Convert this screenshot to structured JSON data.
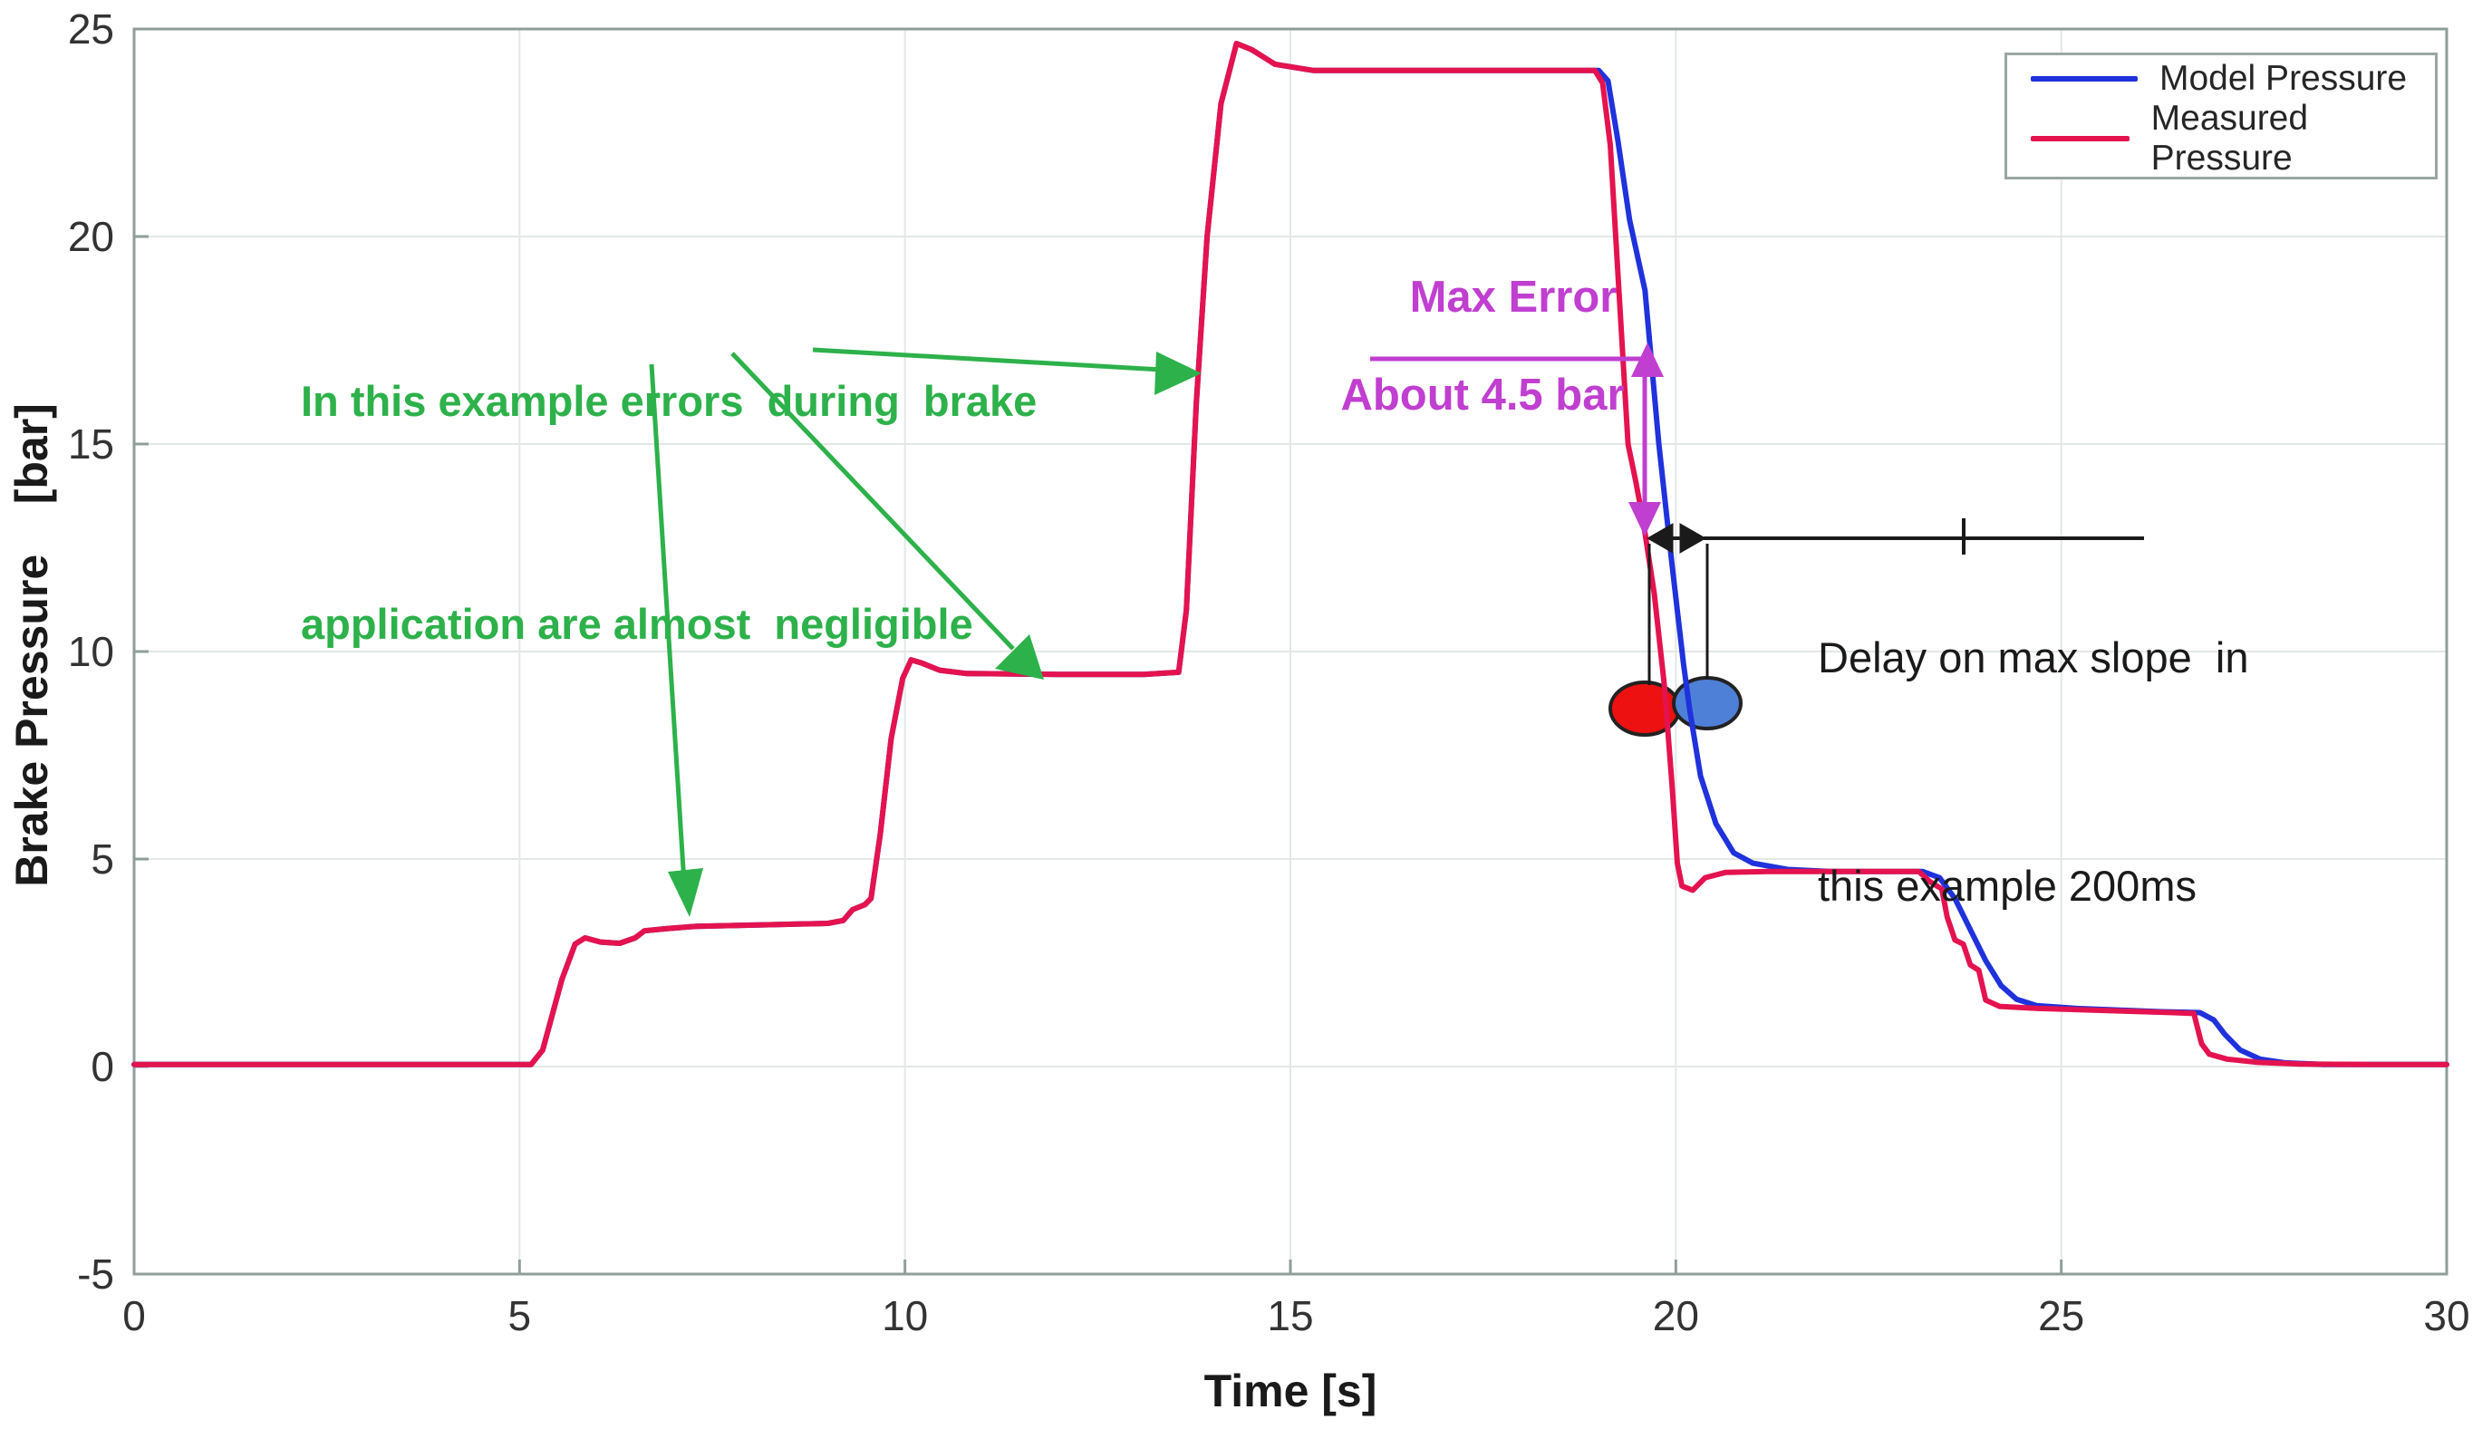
{
  "axes": {
    "xlabel": "Time [s]",
    "ylabel": "Brake Pressure    [bar]",
    "tick_color": "#333333",
    "axis_color": "#8f9e99",
    "grid_color": "#e3e8e5"
  },
  "legend": {
    "items": [
      {
        "label": "Model Pressure",
        "color": "#1f32dc"
      },
      {
        "label": "Measured Pressure",
        "color": "#e4134f"
      }
    ]
  },
  "annotations": {
    "green_note": {
      "line1": "In this example errors  during  brake",
      "line2": "application are almost  negligible",
      "color": "#2db14a"
    },
    "max_error": {
      "line1": "Max Error",
      "line2": "About 4.5 bar",
      "color": "#c03fd0"
    },
    "delay_note": {
      "line1": "Delay on max slope  in",
      "line2": "this example 200ms",
      "color": "#1a1a1a"
    },
    "markers": {
      "measured_ellipse_color": "#ee1111",
      "model_ellipse_color": "#4e80d8",
      "outline_color": "#222222"
    }
  },
  "chart_data": {
    "type": "line",
    "title": "",
    "xlabel": "Time [s]",
    "ylabel": "Brake Pressure [bar]",
    "xlim": [
      0,
      30
    ],
    "ylim": [
      -5,
      25
    ],
    "xticks": [
      0,
      5,
      10,
      15,
      20,
      25,
      30
    ],
    "yticks": [
      -5,
      0,
      5,
      10,
      15,
      20,
      25
    ],
    "grid": true,
    "legend_position": "top-right",
    "series": [
      {
        "name": "Model Pressure",
        "color": "#1f32dc",
        "points": [
          [
            0,
            0.05
          ],
          [
            5.15,
            0.05
          ],
          [
            5.3,
            0.4
          ],
          [
            5.55,
            2.1
          ],
          [
            5.72,
            2.95
          ],
          [
            5.85,
            3.1
          ],
          [
            6.05,
            3.0
          ],
          [
            6.3,
            2.97
          ],
          [
            6.5,
            3.1
          ],
          [
            6.62,
            3.27
          ],
          [
            6.9,
            3.32
          ],
          [
            7.3,
            3.38
          ],
          [
            8.3,
            3.42
          ],
          [
            9.0,
            3.45
          ],
          [
            9.2,
            3.52
          ],
          [
            9.32,
            3.78
          ],
          [
            9.48,
            3.9
          ],
          [
            9.56,
            4.05
          ],
          [
            9.68,
            5.6
          ],
          [
            9.82,
            7.9
          ],
          [
            9.97,
            9.35
          ],
          [
            10.08,
            9.8
          ],
          [
            10.22,
            9.72
          ],
          [
            10.45,
            9.55
          ],
          [
            10.8,
            9.47
          ],
          [
            12.0,
            9.45
          ],
          [
            13.1,
            9.45
          ],
          [
            13.55,
            9.5
          ],
          [
            13.65,
            11.0
          ],
          [
            13.78,
            16.0
          ],
          [
            13.92,
            20.0
          ],
          [
            14.1,
            23.2
          ],
          [
            14.3,
            24.65
          ],
          [
            14.5,
            24.5
          ],
          [
            14.8,
            24.15
          ],
          [
            15.3,
            24.0
          ],
          [
            16.5,
            24.0
          ],
          [
            18.0,
            24.0
          ],
          [
            19.0,
            24.0
          ],
          [
            19.12,
            23.75
          ],
          [
            19.25,
            22.3
          ],
          [
            19.4,
            20.4
          ],
          [
            19.6,
            18.7
          ],
          [
            19.78,
            15.0
          ],
          [
            19.95,
            12.1
          ],
          [
            20.1,
            9.7
          ],
          [
            20.18,
            8.6
          ],
          [
            20.32,
            7.0
          ],
          [
            20.52,
            5.85
          ],
          [
            20.75,
            5.15
          ],
          [
            21.0,
            4.9
          ],
          [
            21.45,
            4.75
          ],
          [
            22.0,
            4.7
          ],
          [
            23.2,
            4.7
          ],
          [
            23.42,
            4.55
          ],
          [
            23.62,
            4.05
          ],
          [
            23.82,
            3.3
          ],
          [
            24.02,
            2.55
          ],
          [
            24.22,
            1.95
          ],
          [
            24.42,
            1.62
          ],
          [
            24.68,
            1.47
          ],
          [
            25.2,
            1.4
          ],
          [
            26.3,
            1.32
          ],
          [
            26.8,
            1.3
          ],
          [
            26.98,
            1.12
          ],
          [
            27.12,
            0.78
          ],
          [
            27.32,
            0.4
          ],
          [
            27.58,
            0.18
          ],
          [
            27.9,
            0.09
          ],
          [
            28.4,
            0.05
          ],
          [
            29.5,
            0.05
          ],
          [
            30,
            0.05
          ]
        ]
      },
      {
        "name": "Measured Pressure",
        "color": "#e4134f",
        "points": [
          [
            0,
            0.05
          ],
          [
            5.15,
            0.05
          ],
          [
            5.3,
            0.4
          ],
          [
            5.55,
            2.1
          ],
          [
            5.72,
            2.95
          ],
          [
            5.85,
            3.1
          ],
          [
            6.05,
            3.0
          ],
          [
            6.3,
            2.97
          ],
          [
            6.5,
            3.1
          ],
          [
            6.62,
            3.27
          ],
          [
            6.9,
            3.32
          ],
          [
            7.3,
            3.38
          ],
          [
            8.3,
            3.42
          ],
          [
            9.0,
            3.45
          ],
          [
            9.2,
            3.52
          ],
          [
            9.32,
            3.78
          ],
          [
            9.48,
            3.9
          ],
          [
            9.56,
            4.05
          ],
          [
            9.68,
            5.6
          ],
          [
            9.82,
            7.9
          ],
          [
            9.97,
            9.35
          ],
          [
            10.08,
            9.8
          ],
          [
            10.22,
            9.72
          ],
          [
            10.45,
            9.55
          ],
          [
            10.8,
            9.47
          ],
          [
            12.0,
            9.45
          ],
          [
            13.1,
            9.45
          ],
          [
            13.55,
            9.5
          ],
          [
            13.65,
            11.0
          ],
          [
            13.78,
            16.0
          ],
          [
            13.92,
            20.0
          ],
          [
            14.1,
            23.2
          ],
          [
            14.3,
            24.65
          ],
          [
            14.5,
            24.5
          ],
          [
            14.8,
            24.15
          ],
          [
            15.3,
            24.0
          ],
          [
            16.5,
            24.0
          ],
          [
            18.0,
            24.0
          ],
          [
            18.95,
            24.0
          ],
          [
            19.05,
            23.7
          ],
          [
            19.15,
            22.2
          ],
          [
            19.3,
            17.5
          ],
          [
            19.38,
            15.0
          ],
          [
            19.48,
            14.1
          ],
          [
            19.58,
            13.1
          ],
          [
            19.72,
            11.4
          ],
          [
            19.85,
            9.2
          ],
          [
            19.95,
            6.8
          ],
          [
            20.02,
            4.9
          ],
          [
            20.08,
            4.35
          ],
          [
            20.22,
            4.25
          ],
          [
            20.38,
            4.55
          ],
          [
            20.65,
            4.68
          ],
          [
            21.2,
            4.7
          ],
          [
            22.5,
            4.7
          ],
          [
            23.15,
            4.7
          ],
          [
            23.3,
            4.45
          ],
          [
            23.45,
            4.28
          ],
          [
            23.52,
            3.6
          ],
          [
            23.62,
            3.05
          ],
          [
            23.73,
            2.95
          ],
          [
            23.82,
            2.45
          ],
          [
            23.93,
            2.32
          ],
          [
            24.02,
            1.6
          ],
          [
            24.2,
            1.45
          ],
          [
            24.7,
            1.4
          ],
          [
            25.6,
            1.35
          ],
          [
            26.45,
            1.3
          ],
          [
            26.72,
            1.28
          ],
          [
            26.82,
            0.55
          ],
          [
            26.92,
            0.3
          ],
          [
            27.15,
            0.18
          ],
          [
            27.55,
            0.1
          ],
          [
            28.1,
            0.06
          ],
          [
            29.0,
            0.05
          ],
          [
            30,
            0.05
          ]
        ]
      }
    ]
  }
}
